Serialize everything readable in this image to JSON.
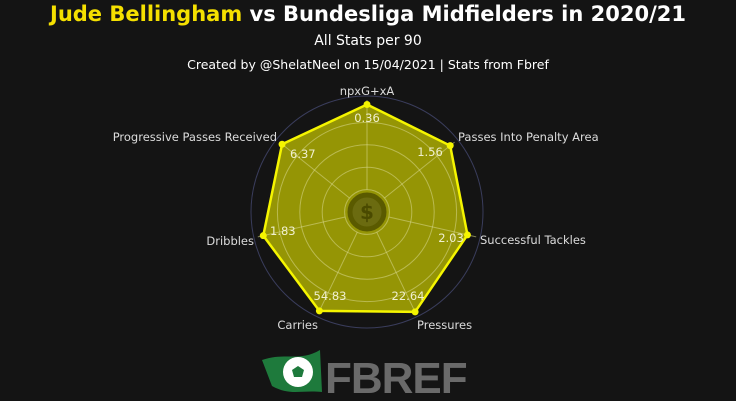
{
  "title": {
    "player": "Jude Bellingham",
    "rest": " vs Bundesliga Midfielders in 2020/21"
  },
  "subtitle": "All Stats per 90",
  "credit": "Created by @ShelatNeel on 15/04/2021 | Stats from Fbref",
  "logo_text": "FBREF",
  "colors": {
    "background": "#141414",
    "fill": "#c8c800",
    "stroke": "#f5f500",
    "ring": "#3a3d5c",
    "title_accent": "#f5e000",
    "logo_green": "#1e7a3c"
  },
  "chart_data": {
    "type": "radar",
    "axes": [
      "npxG+xA",
      "Passes Into Penalty Area",
      "Successful Tackles",
      "Pressures",
      "Carries",
      "Dribbles",
      "Progressive Passes Received"
    ],
    "values": [
      0.36,
      1.56,
      2.03,
      22.64,
      54.83,
      1.83,
      6.37
    ],
    "value_labels": [
      "0.36",
      "1.56",
      "2.03",
      "22.64",
      "54.83",
      "1.83",
      "6.37"
    ],
    "relative_scale": [
      0.96,
      0.95,
      0.92,
      0.99,
      0.98,
      0.95,
      0.97
    ],
    "grid": true
  }
}
